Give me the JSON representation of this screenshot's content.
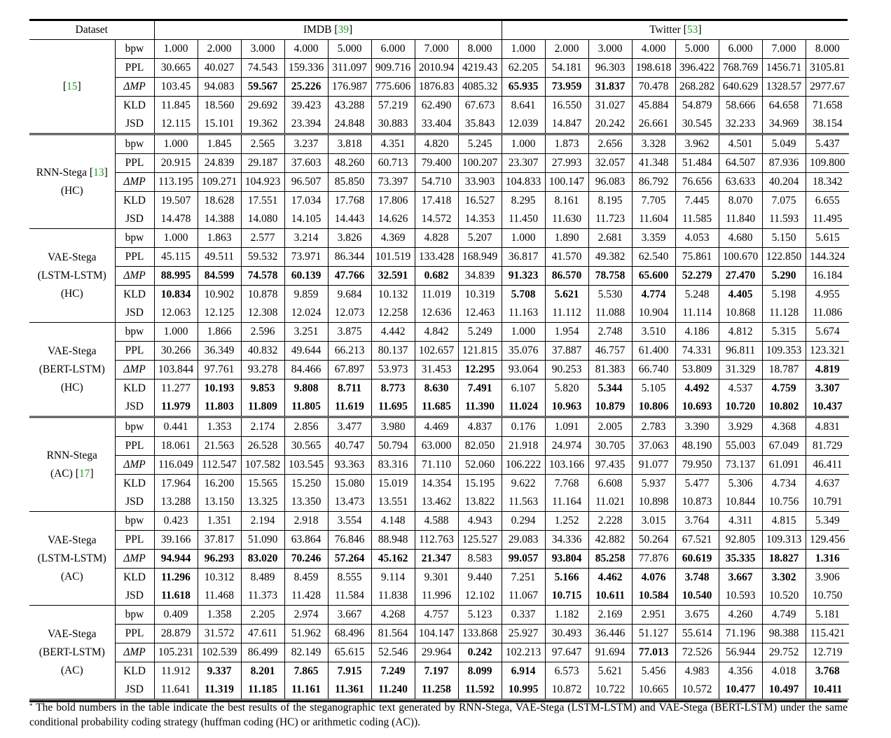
{
  "header": {
    "dataset_label": "Dataset",
    "imdb_label": "IMDB",
    "imdb_cite": "39",
    "twitter_label": "Twitter",
    "twitter_cite": "53"
  },
  "metric_labels": {
    "bpw": "bpw",
    "ppl": "PPL",
    "dmp": "ΔMP",
    "kld": "KLD",
    "jsd": "JSD"
  },
  "groups": [
    {
      "name_lines": [
        "[15]"
      ],
      "cite_only": "15",
      "rows": [
        {
          "metric": "bpw",
          "values": [
            "1.000",
            "2.000",
            "3.000",
            "4.000",
            "5.000",
            "6.000",
            "7.000",
            "8.000",
            "1.000",
            "2.000",
            "3.000",
            "4.000",
            "5.000",
            "6.000",
            "7.000",
            "8.000"
          ],
          "bold": []
        },
        {
          "metric": "ppl",
          "values": [
            "30.665",
            "40.027",
            "74.543",
            "159.336",
            "311.097",
            "909.716",
            "2010.94",
            "4219.43",
            "62.205",
            "54.181",
            "96.303",
            "198.618",
            "396.422",
            "768.769",
            "1456.71",
            "3105.81"
          ],
          "bold": []
        },
        {
          "metric": "dmp",
          "values": [
            "103.45",
            "94.083",
            "59.567",
            "25.226",
            "176.987",
            "775.606",
            "1876.83",
            "4085.32",
            "65.935",
            "73.959",
            "31.837",
            "70.478",
            "268.282",
            "640.629",
            "1328.57",
            "2977.67"
          ],
          "bold": [
            2,
            3,
            8,
            9,
            10
          ]
        },
        {
          "metric": "kld",
          "values": [
            "11.845",
            "18.560",
            "29.692",
            "39.423",
            "43.288",
            "57.219",
            "62.490",
            "67.673",
            "8.641",
            "16.550",
            "31.027",
            "45.884",
            "54.879",
            "58.666",
            "64.658",
            "71.658"
          ],
          "bold": []
        },
        {
          "metric": "jsd",
          "values": [
            "12.115",
            "15.101",
            "19.362",
            "23.394",
            "24.848",
            "30.883",
            "33.404",
            "35.843",
            "12.039",
            "14.847",
            "20.242",
            "26.661",
            "30.545",
            "32.233",
            "34.969",
            "38.154"
          ],
          "bold": []
        }
      ]
    },
    {
      "name_lines": [
        "RNN-Stega [13]",
        "(HC)"
      ],
      "rows": [
        {
          "metric": "bpw",
          "values": [
            "1.000",
            "1.845",
            "2.565",
            "3.237",
            "3.818",
            "4.351",
            "4.820",
            "5.245",
            "1.000",
            "1.873",
            "2.656",
            "3.328",
            "3.962",
            "4.501",
            "5.049",
            "5.437"
          ],
          "bold": []
        },
        {
          "metric": "ppl",
          "values": [
            "20.915",
            "24.839",
            "29.187",
            "37.603",
            "48.260",
            "60.713",
            "79.400",
            "100.207",
            "23.307",
            "27.993",
            "32.057",
            "41.348",
            "51.484",
            "64.507",
            "87.936",
            "109.800"
          ],
          "bold": []
        },
        {
          "metric": "dmp",
          "values": [
            "113.195",
            "109.271",
            "104.923",
            "96.507",
            "85.850",
            "73.397",
            "54.710",
            "33.903",
            "104.833",
            "100.147",
            "96.083",
            "86.792",
            "76.656",
            "63.633",
            "40.204",
            "18.342"
          ],
          "bold": []
        },
        {
          "metric": "kld",
          "values": [
            "19.507",
            "18.628",
            "17.551",
            "17.034",
            "17.768",
            "17.806",
            "17.418",
            "16.527",
            "8.295",
            "8.161",
            "8.195",
            "7.705",
            "7.445",
            "8.070",
            "7.075",
            "6.655"
          ],
          "bold": []
        },
        {
          "metric": "jsd",
          "values": [
            "14.478",
            "14.388",
            "14.080",
            "14.105",
            "14.443",
            "14.626",
            "14.572",
            "14.353",
            "11.450",
            "11.630",
            "11.723",
            "11.604",
            "11.585",
            "11.840",
            "11.593",
            "11.495"
          ],
          "bold": []
        }
      ]
    },
    {
      "name_lines": [
        "VAE-Stega",
        "(LSTM-LSTM)",
        "(HC)"
      ],
      "rows": [
        {
          "metric": "bpw",
          "values": [
            "1.000",
            "1.863",
            "2.577",
            "3.214",
            "3.826",
            "4.369",
            "4.828",
            "5.207",
            "1.000",
            "1.890",
            "2.681",
            "3.359",
            "4.053",
            "4.680",
            "5.150",
            "5.615"
          ],
          "bold": []
        },
        {
          "metric": "ppl",
          "values": [
            "45.115",
            "49.511",
            "59.532",
            "73.971",
            "86.344",
            "101.519",
            "133.428",
            "168.949",
            "36.817",
            "41.570",
            "49.382",
            "62.540",
            "75.861",
            "100.670",
            "122.850",
            "144.324"
          ],
          "bold": []
        },
        {
          "metric": "dmp",
          "values": [
            "88.995",
            "84.599",
            "74.578",
            "60.139",
            "47.766",
            "32.591",
            "0.682",
            "34.839",
            "91.323",
            "86.570",
            "78.758",
            "65.600",
            "52.279",
            "27.470",
            "5.290",
            "16.184"
          ],
          "bold": [
            0,
            1,
            2,
            3,
            4,
            5,
            6,
            8,
            9,
            10,
            11,
            12,
            13,
            14
          ]
        },
        {
          "metric": "kld",
          "values": [
            "10.834",
            "10.902",
            "10.878",
            "9.859",
            "9.684",
            "10.132",
            "11.019",
            "10.319",
            "5.708",
            "5.621",
            "5.530",
            "4.774",
            "5.248",
            "4.405",
            "5.198",
            "4.955"
          ],
          "bold": [
            0,
            8,
            9,
            11,
            13
          ]
        },
        {
          "metric": "jsd",
          "values": [
            "12.063",
            "12.125",
            "12.308",
            "12.024",
            "12.073",
            "12.258",
            "12.636",
            "12.463",
            "11.163",
            "11.112",
            "11.088",
            "10.904",
            "11.114",
            "10.868",
            "11.128",
            "11.086"
          ],
          "bold": []
        }
      ]
    },
    {
      "name_lines": [
        "VAE-Stega",
        "(BERT-LSTM)",
        "(HC)"
      ],
      "rows": [
        {
          "metric": "bpw",
          "values": [
            "1.000",
            "1.866",
            "2.596",
            "3.251",
            "3.875",
            "4.442",
            "4.842",
            "5.249",
            "1.000",
            "1.954",
            "2.748",
            "3.510",
            "4.186",
            "4.812",
            "5.315",
            "5.674"
          ],
          "bold": []
        },
        {
          "metric": "ppl",
          "values": [
            "30.266",
            "36.349",
            "40.832",
            "49.644",
            "66.213",
            "80.137",
            "102.657",
            "121.815",
            "35.076",
            "37.887",
            "46.757",
            "61.400",
            "74.331",
            "96.811",
            "109.353",
            "123.321"
          ],
          "bold": []
        },
        {
          "metric": "dmp",
          "values": [
            "103.844",
            "97.761",
            "93.278",
            "84.466",
            "67.897",
            "53.973",
            "31.453",
            "12.295",
            "93.064",
            "90.253",
            "81.383",
            "66.740",
            "53.809",
            "31.329",
            "18.787",
            "4.819"
          ],
          "bold": [
            7,
            15
          ]
        },
        {
          "metric": "kld",
          "values": [
            "11.277",
            "10.193",
            "9.853",
            "9.808",
            "8.711",
            "8.773",
            "8.630",
            "7.491",
            "6.107",
            "5.820",
            "5.344",
            "5.105",
            "4.492",
            "4.537",
            "4.759",
            "3.307"
          ],
          "bold": [
            1,
            2,
            3,
            4,
            5,
            6,
            7,
            10,
            12,
            14,
            15
          ]
        },
        {
          "metric": "jsd",
          "values": [
            "11.979",
            "11.803",
            "11.809",
            "11.805",
            "11.619",
            "11.695",
            "11.685",
            "11.390",
            "11.024",
            "10.963",
            "10.879",
            "10.806",
            "10.693",
            "10.720",
            "10.802",
            "10.437"
          ],
          "bold": [
            0,
            1,
            2,
            3,
            4,
            5,
            6,
            7,
            8,
            9,
            10,
            11,
            12,
            13,
            14,
            15
          ]
        }
      ]
    },
    {
      "name_lines": [
        "RNN-Stega",
        "(AC) [17]"
      ],
      "rows": [
        {
          "metric": "bpw",
          "values": [
            "0.441",
            "1.353",
            "2.174",
            "2.856",
            "3.477",
            "3.980",
            "4.469",
            "4.837",
            "0.176",
            "1.091",
            "2.005",
            "2.783",
            "3.390",
            "3.929",
            "4.368",
            "4.831"
          ],
          "bold": []
        },
        {
          "metric": "ppl",
          "values": [
            "18.061",
            "21.563",
            "26.528",
            "30.565",
            "40.747",
            "50.794",
            "63.000",
            "82.050",
            "21.918",
            "24.974",
            "30.705",
            "37.063",
            "48.190",
            "55.003",
            "67.049",
            "81.729"
          ],
          "bold": []
        },
        {
          "metric": "dmp",
          "values": [
            "116.049",
            "112.547",
            "107.582",
            "103.545",
            "93.363",
            "83.316",
            "71.110",
            "52.060",
            "106.222",
            "103.166",
            "97.435",
            "91.077",
            "79.950",
            "73.137",
            "61.091",
            "46.411"
          ],
          "bold": []
        },
        {
          "metric": "kld",
          "values": [
            "17.964",
            "16.200",
            "15.565",
            "15.250",
            "15.080",
            "15.019",
            "14.354",
            "15.195",
            "9.622",
            "7.768",
            "6.608",
            "5.937",
            "5.477",
            "5.306",
            "4.734",
            "4.637"
          ],
          "bold": []
        },
        {
          "metric": "jsd",
          "values": [
            "13.288",
            "13.150",
            "13.325",
            "13.350",
            "13.473",
            "13.551",
            "13.462",
            "13.822",
            "11.563",
            "11.164",
            "11.021",
            "10.898",
            "10.873",
            "10.844",
            "10.756",
            "10.791"
          ],
          "bold": []
        }
      ]
    },
    {
      "name_lines": [
        "VAE-Stega",
        "(LSTM-LSTM)",
        "(AC)"
      ],
      "rows": [
        {
          "metric": "bpw",
          "values": [
            "0.423",
            "1.351",
            "2.194",
            "2.918",
            "3.554",
            "4.148",
            "4.588",
            "4.943",
            "0.294",
            "1.252",
            "2.228",
            "3.015",
            "3.764",
            "4.311",
            "4.815",
            "5.349"
          ],
          "bold": []
        },
        {
          "metric": "ppl",
          "values": [
            "39.166",
            "37.817",
            "51.090",
            "63.864",
            "76.846",
            "88.948",
            "112.763",
            "125.527",
            "29.083",
            "34.336",
            "42.882",
            "50.264",
            "67.521",
            "92.805",
            "109.313",
            "129.456"
          ],
          "bold": []
        },
        {
          "metric": "dmp",
          "values": [
            "94.944",
            "96.293",
            "83.020",
            "70.246",
            "57.264",
            "45.162",
            "21.347",
            "8.583",
            "99.057",
            "93.804",
            "85.258",
            "77.876",
            "60.619",
            "35.335",
            "18.827",
            "1.316"
          ],
          "bold": [
            0,
            1,
            2,
            3,
            4,
            5,
            6,
            8,
            9,
            10,
            12,
            13,
            14,
            15
          ]
        },
        {
          "metric": "kld",
          "values": [
            "11.296",
            "10.312",
            "8.489",
            "8.459",
            "8.555",
            "9.114",
            "9.301",
            "9.440",
            "7.251",
            "5.166",
            "4.462",
            "4.076",
            "3.748",
            "3.667",
            "3.302",
            "3.906"
          ],
          "bold": [
            0,
            9,
            10,
            11,
            12,
            13,
            14
          ]
        },
        {
          "metric": "jsd",
          "values": [
            "11.618",
            "11.468",
            "11.373",
            "11.428",
            "11.584",
            "11.838",
            "11.996",
            "12.102",
            "11.067",
            "10.715",
            "10.611",
            "10.584",
            "10.540",
            "10.593",
            "10.520",
            "10.750"
          ],
          "bold": [
            0,
            9,
            10,
            11,
            12
          ]
        }
      ]
    },
    {
      "name_lines": [
        "VAE-Stega",
        "(BERT-LSTM)",
        "(AC)"
      ],
      "rows": [
        {
          "metric": "bpw",
          "values": [
            "0.409",
            "1.358",
            "2.205",
            "2.974",
            "3.667",
            "4.268",
            "4.757",
            "5.123",
            "0.337",
            "1.182",
            "2.169",
            "2.951",
            "3.675",
            "4.260",
            "4.749",
            "5.181"
          ],
          "bold": []
        },
        {
          "metric": "ppl",
          "values": [
            "28.879",
            "31.572",
            "47.611",
            "51.962",
            "68.496",
            "81.564",
            "104.147",
            "133.868",
            "25.927",
            "30.493",
            "36.446",
            "51.127",
            "55.614",
            "71.196",
            "98.388",
            "115.421"
          ],
          "bold": []
        },
        {
          "metric": "dmp",
          "values": [
            "105.231",
            "102.539",
            "86.499",
            "82.149",
            "65.615",
            "52.546",
            "29.964",
            "0.242",
            "102.213",
            "97.647",
            "91.694",
            "77.013",
            "72.526",
            "56.944",
            "29.752",
            "12.719"
          ],
          "bold": [
            7,
            11
          ]
        },
        {
          "metric": "kld",
          "values": [
            "11.912",
            "9.337",
            "8.201",
            "7.865",
            "7.915",
            "7.249",
            "7.197",
            "8.099",
            "6.914",
            "6.573",
            "5.621",
            "5.456",
            "4.983",
            "4.356",
            "4.018",
            "3.768"
          ],
          "bold": [
            1,
            2,
            3,
            4,
            5,
            6,
            7,
            8,
            15
          ]
        },
        {
          "metric": "jsd",
          "values": [
            "11.641",
            "11.319",
            "11.185",
            "11.161",
            "11.361",
            "11.240",
            "11.258",
            "11.592",
            "10.995",
            "10.872",
            "10.722",
            "10.665",
            "10.572",
            "10.477",
            "10.497",
            "10.411"
          ],
          "bold": [
            1,
            2,
            3,
            4,
            5,
            6,
            7,
            8,
            13,
            14,
            15
          ]
        }
      ]
    }
  ],
  "footnote": {
    "marker": "*",
    "text": "The bold numbers in the table indicate the best results of the steganographic text generated by RNN-Stega, VAE-Stega (LSTM-LSTM) and VAE-Stega (BERT-LSTM) under the same conditional probability coding strategy (huffman coding (HC) or arithmetic coding (AC))."
  }
}
